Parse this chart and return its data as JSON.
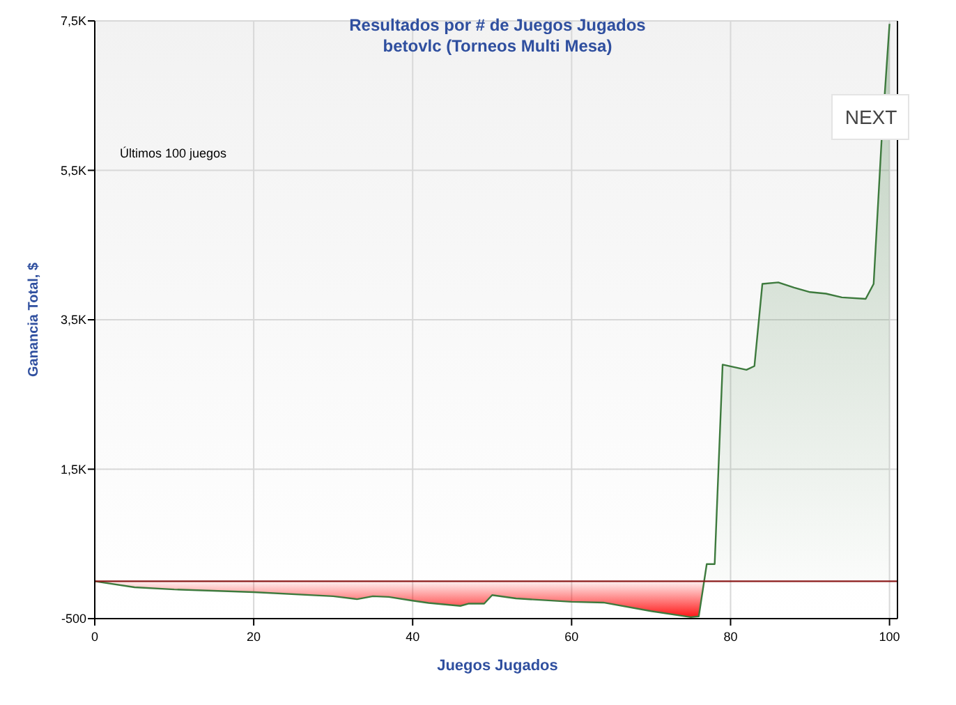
{
  "chart_data": {
    "type": "area",
    "title": "Resultados por # de Juegos Jugados",
    "subtitle": "betovlc (Torneos Multi Mesa)",
    "xlabel": "Juegos Jugados",
    "ylabel": "Ganancia Total, $",
    "annotations": [
      "Últimos 100 juegos",
      "NEXT"
    ],
    "x": [
      0,
      5,
      10,
      20,
      30,
      33,
      35,
      37,
      40,
      42,
      46,
      47,
      49,
      50,
      53,
      60,
      64,
      70,
      75,
      76,
      77,
      78,
      79,
      82,
      83,
      84,
      86,
      88,
      90,
      92,
      94,
      97,
      98,
      99,
      100
    ],
    "series": [
      {
        "color": "#3d7a3d",
        "values": [
          0,
          -80,
          -110,
          -145,
          -200,
          -240,
          -200,
          -210,
          -260,
          -290,
          -330,
          -300,
          -300,
          -185,
          -230,
          -275,
          -285,
          -400,
          -480,
          -470,
          230,
          230,
          2900,
          2830,
          2880,
          3980,
          4000,
          3930,
          3870,
          3850,
          3800,
          3780,
          3980,
          5900,
          7460
        ]
      }
    ],
    "xlim": [
      0,
      101
    ],
    "xticks": [
      0,
      20,
      40,
      60,
      80,
      100
    ],
    "ylim": [
      -500,
      7500
    ],
    "yticks": [
      -500,
      {
        "value": 1500,
        "label": "1,5K"
      },
      {
        "value": 3500,
        "label": "3,5K"
      },
      {
        "value": 5500,
        "label": "5,5K"
      },
      {
        "value": 7500,
        "label": "7,5K"
      }
    ],
    "grid": true,
    "ref_lines": [
      {
        "axis": "y",
        "value": 0,
        "color": "#8b1a1a"
      }
    ]
  }
}
